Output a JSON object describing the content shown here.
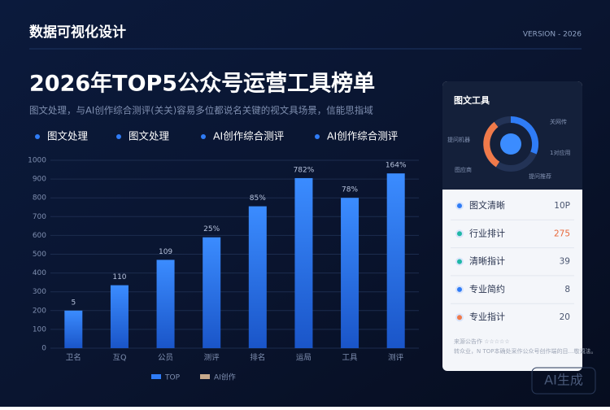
{
  "header": {
    "brand": "数据可视化设计",
    "version": "VERSION - 2026",
    "title": "2026年TOP5公众号运营工具榜单",
    "subtitle": "图文处理，与AI创作综合测评(关关)容易多位都说名关键的视文具场景，信能思指域"
  },
  "filters": [
    "图文处理",
    "图文处理",
    "AI创作综合测评",
    "AI创作综合测评"
  ],
  "chart_data": {
    "type": "bar",
    "categories": [
      "卫名",
      "互Q",
      "公员",
      "测评",
      "排名",
      "运局",
      "工具",
      "测评"
    ],
    "series": [
      {
        "name": "TOP",
        "color": "#2f7cf6",
        "values": [
          200,
          335,
          470,
          590,
          755,
          905,
          800,
          930
        ]
      },
      {
        "name": "AI创作",
        "color": "#c7a98c",
        "values": [
          null,
          null,
          null,
          null,
          null,
          null,
          null,
          null
        ]
      }
    ],
    "bar_labels": [
      "5",
      "110",
      "109",
      "25%",
      "85%",
      "782%",
      "78%",
      "164%"
    ],
    "ylim": [
      0,
      1000
    ],
    "yticks": [
      0,
      100,
      200,
      300,
      400,
      500,
      600,
      700,
      800,
      900,
      1000
    ],
    "grid": true,
    "legend": "bottom"
  },
  "side_panel": {
    "title": "图文工具",
    "donut_labels": [
      "关网传",
      "提问机器",
      "1对应用",
      "图应商",
      "提问推荐"
    ],
    "items": [
      {
        "label": "图文清晰",
        "value": "10P",
        "color": "#2f7cf6"
      },
      {
        "label": "行业排计",
        "value": 275,
        "color": "#1fb8a6"
      },
      {
        "label": "清晰指计",
        "value": 39,
        "color": "#1fb8a6"
      },
      {
        "label": "专业简约",
        "value": 8,
        "color": "#2f7cf6"
      },
      {
        "label": "专业指计",
        "value": 20,
        "color": "#f07a4a"
      }
    ],
    "footer": [
      "来源公告作 ☆☆☆☆☆",
      "转众业，N TOP本确处采作公众号创作端的目…敬词法。"
    ]
  },
  "watermark": "AI生成"
}
